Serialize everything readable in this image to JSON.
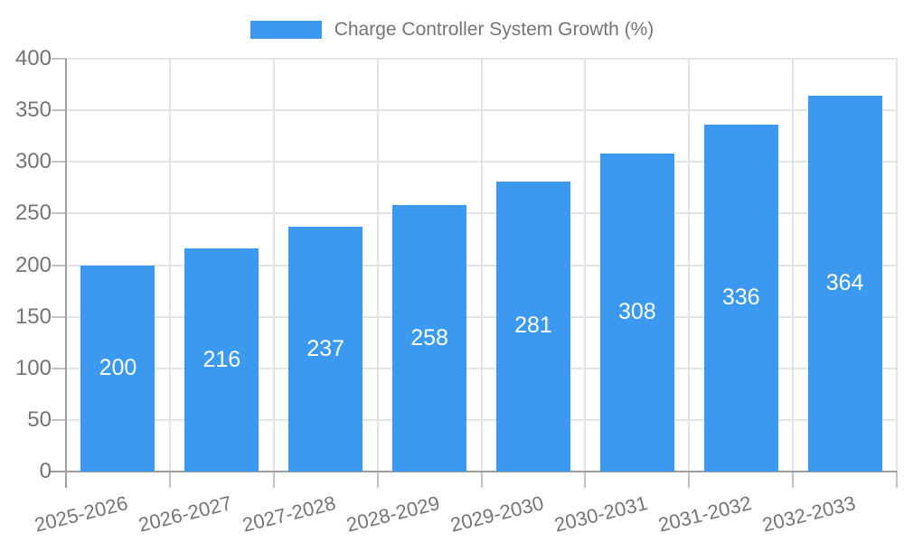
{
  "chart_data": {
    "type": "bar",
    "title": "Charge Controller System Growth (%)",
    "categories": [
      "2025-2026",
      "2026-2027",
      "2027-2028",
      "2028-2029",
      "2029-2030",
      "2030-2031",
      "2031-2032",
      "2032-2033"
    ],
    "values": [
      200,
      216,
      237,
      258,
      281,
      308,
      336,
      364
    ],
    "xlabel": "",
    "ylabel": "",
    "ylim": [
      0,
      400
    ],
    "ytick_step": 50,
    "yticks": [
      0,
      50,
      100,
      150,
      200,
      250,
      300,
      350,
      400
    ],
    "grid": true,
    "legend_position": "top",
    "bar_color": "#3b9af0",
    "value_label_color": "#ffffff",
    "axis_text_color": "#757575",
    "axis_line_color": "#9e9e9e",
    "grid_color": "#e4e4e4",
    "tick_color": "#c2c2c2",
    "background": "#ffffff"
  }
}
